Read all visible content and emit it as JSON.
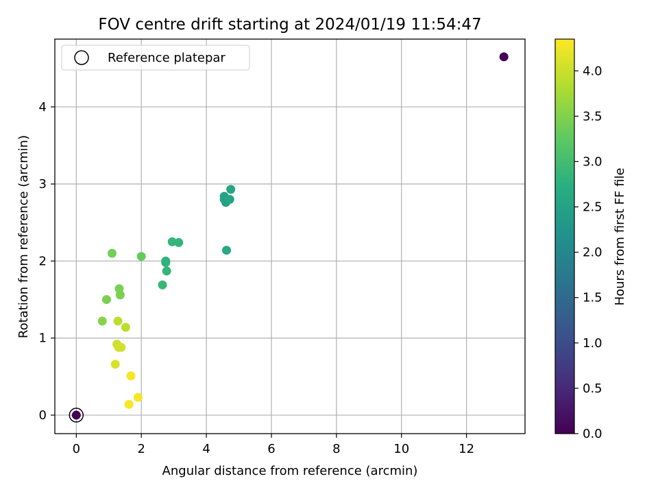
{
  "chart_data": {
    "type": "scatter",
    "title": "FOV centre drift starting at 2024/01/19 11:54:47",
    "xlabel": "Angular distance from reference (arcmin)",
    "ylabel": "Rotation from reference (arcmin)",
    "xlim": [
      -0.66,
      13.8
    ],
    "ylim": [
      -0.24,
      4.88
    ],
    "xticks": [
      0,
      2,
      4,
      6,
      8,
      10,
      12
    ],
    "yticks": [
      0,
      1,
      2,
      3,
      4
    ],
    "grid": true,
    "legend": {
      "position": "upper-left",
      "entries": [
        "Reference platepar"
      ]
    },
    "colorbar": {
      "label": "Hours from first FF file",
      "colormap": "viridis",
      "range": [
        0.0,
        4.35
      ],
      "ticks": [
        "0.0",
        "0.5",
        "1.0",
        "1.5",
        "2.0",
        "2.5",
        "3.0",
        "3.5",
        "4.0"
      ]
    },
    "reference_point": {
      "x": 0,
      "y": 0,
      "label": "Reference platepar"
    },
    "points": [
      {
        "x": 0.0,
        "y": 0.0,
        "c": 0.0
      },
      {
        "x": 13.15,
        "y": 4.65,
        "c": 0.02
      },
      {
        "x": 4.55,
        "y": 2.84,
        "c": 2.5
      },
      {
        "x": 4.55,
        "y": 2.8,
        "c": 2.5
      },
      {
        "x": 4.6,
        "y": 2.76,
        "c": 2.5
      },
      {
        "x": 4.72,
        "y": 2.8,
        "c": 2.55
      },
      {
        "x": 4.75,
        "y": 2.93,
        "c": 2.55
      },
      {
        "x": 4.62,
        "y": 2.14,
        "c": 2.6
      },
      {
        "x": 2.95,
        "y": 2.25,
        "c": 2.85
      },
      {
        "x": 3.15,
        "y": 2.24,
        "c": 2.85
      },
      {
        "x": 2.75,
        "y": 2.0,
        "c": 2.8
      },
      {
        "x": 2.75,
        "y": 1.98,
        "c": 2.8
      },
      {
        "x": 2.78,
        "y": 1.87,
        "c": 2.85
      },
      {
        "x": 2.65,
        "y": 1.69,
        "c": 2.9
      },
      {
        "x": 2.0,
        "y": 2.06,
        "c": 3.3
      },
      {
        "x": 1.1,
        "y": 2.1,
        "c": 3.4
      },
      {
        "x": 1.32,
        "y": 1.64,
        "c": 3.45
      },
      {
        "x": 1.35,
        "y": 1.56,
        "c": 3.45
      },
      {
        "x": 0.93,
        "y": 1.5,
        "c": 3.45
      },
      {
        "x": 0.8,
        "y": 1.22,
        "c": 3.55
      },
      {
        "x": 1.28,
        "y": 1.22,
        "c": 3.9
      },
      {
        "x": 1.52,
        "y": 1.14,
        "c": 3.9
      },
      {
        "x": 1.25,
        "y": 0.92,
        "c": 4.0
      },
      {
        "x": 1.3,
        "y": 0.88,
        "c": 4.05
      },
      {
        "x": 1.38,
        "y": 0.88,
        "c": 4.05
      },
      {
        "x": 1.2,
        "y": 0.66,
        "c": 4.1
      },
      {
        "x": 1.68,
        "y": 0.51,
        "c": 4.3
      },
      {
        "x": 1.9,
        "y": 0.23,
        "c": 4.3
      },
      {
        "x": 1.62,
        "y": 0.14,
        "c": 4.3
      }
    ]
  }
}
